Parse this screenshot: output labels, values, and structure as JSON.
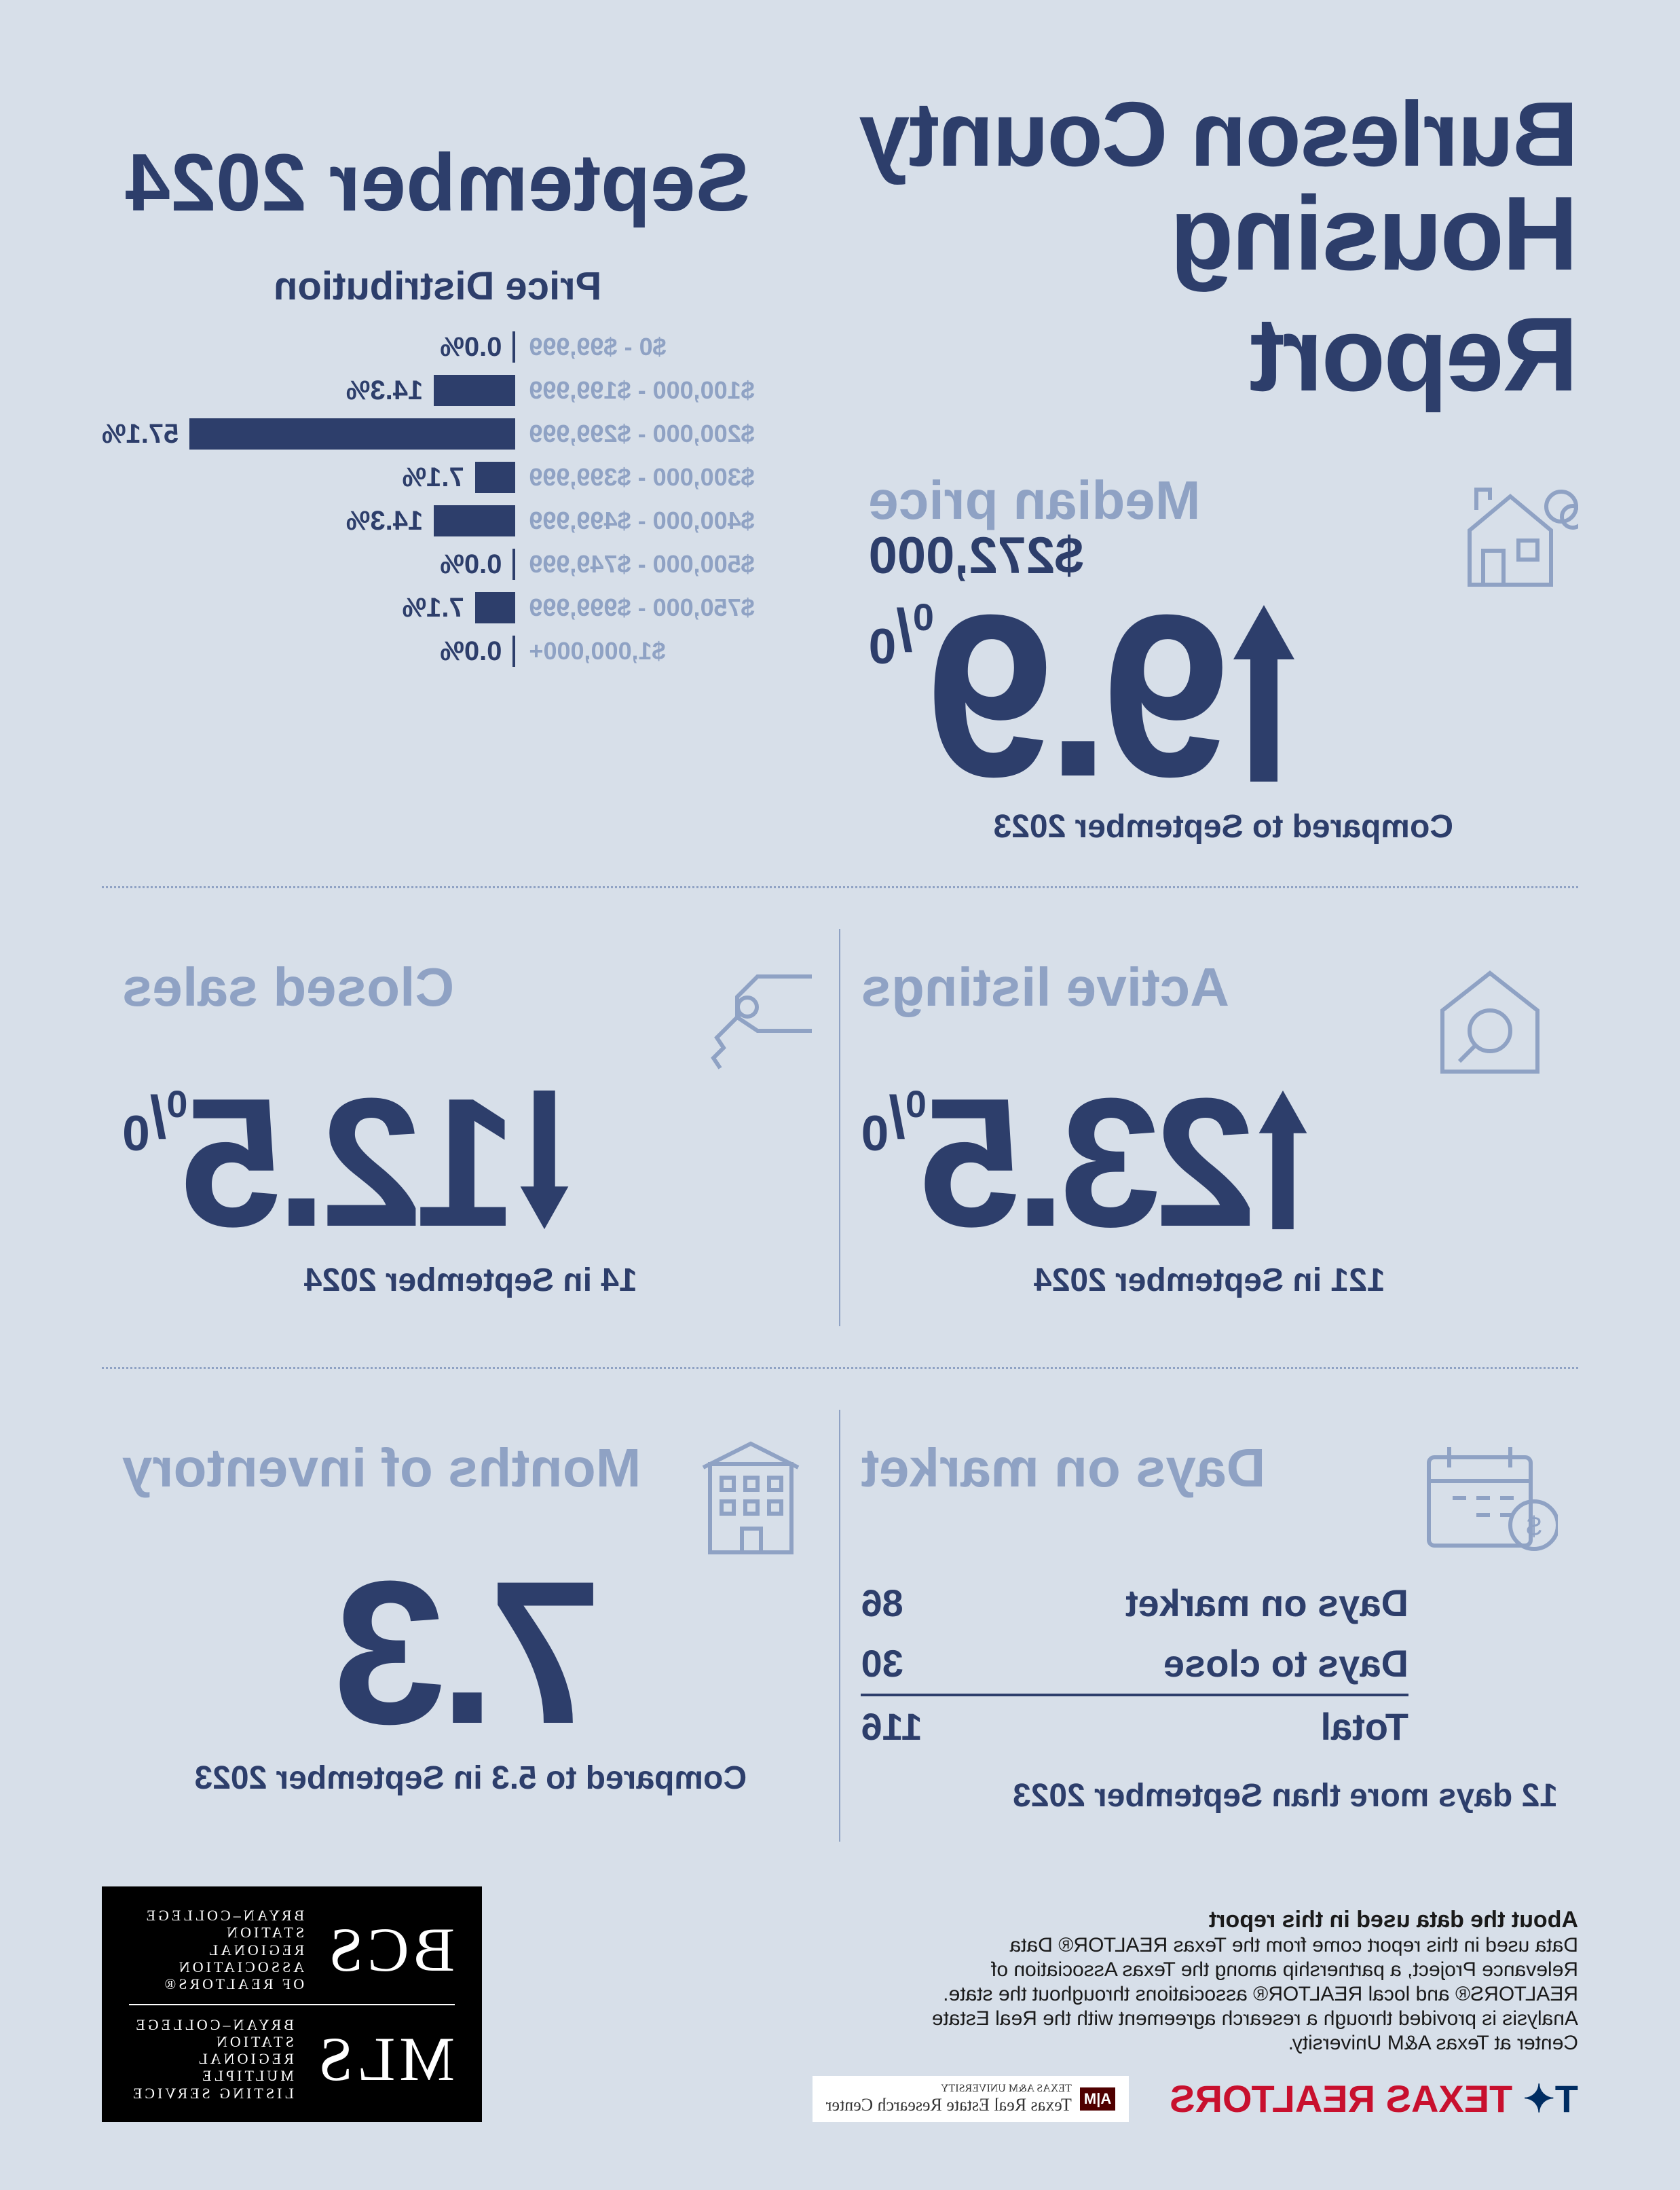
{
  "title": {
    "line1": "Burleson County",
    "line2": "Housing Report"
  },
  "report_date": "September 2024",
  "colors": {
    "background": "#d7dfe9",
    "primary": "#2d3e6b",
    "muted": "#8fa2c4",
    "realtor_red": "#c8102e",
    "realtor_blue": "#002d62"
  },
  "median": {
    "label": "Median price",
    "value": "$272,000",
    "change_direction": "up",
    "change_number": "9.9",
    "change_unit": "%",
    "compared": "Compared to September 2023"
  },
  "distribution": {
    "title": "Price Distribution",
    "max_pct": 57.1,
    "rows": [
      {
        "label": "$0 - $99,999",
        "pct": 0.0,
        "pct_text": "0.0%"
      },
      {
        "label": "$100,000 - $199,999",
        "pct": 14.3,
        "pct_text": "14.3%"
      },
      {
        "label": "$200,000 - $299,999",
        "pct": 57.1,
        "pct_text": "57.1%"
      },
      {
        "label": "$300,000 - $399,999",
        "pct": 7.1,
        "pct_text": "7.1%"
      },
      {
        "label": "$400,000 - $499,999",
        "pct": 14.3,
        "pct_text": "14.3%"
      },
      {
        "label": "$500,000 - $749,999",
        "pct": 0.0,
        "pct_text": "0.0%"
      },
      {
        "label": "$750,000 - $999,999",
        "pct": 7.1,
        "pct_text": "7.1%"
      },
      {
        "label": "$1,000,000+",
        "pct": 0.0,
        "pct_text": "0.0%"
      }
    ]
  },
  "active": {
    "label": "Active listings",
    "direction": "up",
    "number": "23.5",
    "unit": "%",
    "sub": "121 in September 2024"
  },
  "closed": {
    "label": "Closed sales",
    "direction": "down",
    "number": "12.5",
    "unit": "%",
    "sub": "14 in September 2024"
  },
  "dom": {
    "label": "Days on market",
    "rows": [
      {
        "k": "Days on market",
        "v": "86"
      },
      {
        "k": "Days to close",
        "v": "30"
      }
    ],
    "total_k": "Total",
    "total_v": "116",
    "sub": "12 days more than September 2023"
  },
  "moi": {
    "label": "Months of inventory",
    "number": "7.3",
    "sub": "Compared to 5.3 in September 2023"
  },
  "footer": {
    "about_title": "About the data used in this report",
    "about_text": "Data used in this report come from the Texas REALTOR® Data Relevance Project, a partnership among the Texas Association of REALTORS® and local REALTOR® associations throughout the state. Analysis is provided through a research agreement with the Real Estate Center at Texas A&M University.",
    "tx_realtors": "TEXAS REALTORS",
    "recenter_top": "TEXAS A&M UNIVERSITY",
    "recenter": "Texas Real Estate Research Center",
    "bcs": {
      "big1": "BCS",
      "small1a": "BRYAN–COLLEGE STATION",
      "small1b": "REGIONAL ASSOCIATION",
      "small1c": "OF REALTORS®",
      "big2": "MLS",
      "small2a": "BRYAN–COLLEGE STATION",
      "small2b": "REGIONAL MULTIPLE",
      "small2c": "LISTING SERVICE"
    }
  }
}
